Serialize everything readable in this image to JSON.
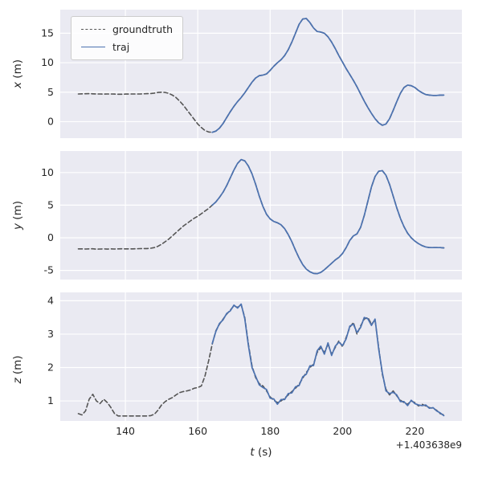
{
  "figure": {
    "xlabel": "t (s)",
    "xlabel_var": "t",
    "xlabel_unit": " (s)",
    "offset_text": "+1.403638e9"
  },
  "colors": {
    "background": "#ffffff",
    "axes_background": "#eaeaf2",
    "grid": "#ffffff",
    "text": "#262626"
  },
  "legend": {
    "position": "upper left",
    "entries": [
      {
        "label": "groundtruth",
        "series": "groundtruth"
      },
      {
        "label": "traj",
        "series": "traj"
      }
    ]
  },
  "series_styles": {
    "groundtruth": {
      "color": "#555555",
      "dash": "5 3.2",
      "width": 1.6
    },
    "traj": {
      "color": "#4c72b0",
      "dash": "",
      "width": 1.7
    }
  },
  "chart_data": [
    {
      "type": "line",
      "title": "",
      "xlabel": "",
      "ylabel": "x (m)",
      "ylabel_var": "x",
      "ylabel_unit": " (m)",
      "xlim": [
        122,
        233
      ],
      "ylim": [
        -2.8,
        19
      ],
      "xticks": [
        140,
        160,
        180,
        200,
        220
      ],
      "yticks": [
        0,
        5,
        10,
        15
      ],
      "x_offset": "+1.403638e9",
      "grid": true,
      "series": [
        {
          "name": "groundtruth",
          "t_start": 127,
          "t_step": 1,
          "values": [
            4.7,
            4.72,
            4.73,
            4.75,
            4.72,
            4.7,
            4.7,
            4.68,
            4.7,
            4.7,
            4.68,
            4.65,
            4.65,
            4.68,
            4.7,
            4.7,
            4.7,
            4.7,
            4.72,
            4.75,
            4.78,
            4.85,
            4.95,
            5.0,
            4.95,
            4.8,
            4.5,
            4.1,
            3.5,
            2.8,
            2.0,
            1.2,
            0.4,
            -0.4,
            -1.0,
            -1.5,
            -1.75,
            -1.8,
            -1.6,
            -1.1,
            -0.3,
            0.7,
            1.7,
            2.6,
            3.4,
            4.1,
            4.9,
            5.8,
            6.7,
            7.4,
            7.8,
            7.9,
            8.1,
            8.7,
            9.4,
            10.0,
            10.5,
            11.2,
            12.2,
            13.5,
            15.0,
            16.5,
            17.4,
            17.5,
            16.8,
            15.9,
            15.3,
            15.2,
            15.0,
            14.4,
            13.5,
            12.4,
            11.2,
            10.1,
            9.0,
            8.0,
            7.0,
            5.9,
            4.7,
            3.5,
            2.4,
            1.4,
            0.5,
            -0.2,
            -0.6,
            -0.4,
            0.5,
            1.9,
            3.4,
            4.8,
            5.8,
            6.2,
            6.1,
            5.8,
            5.3,
            4.9,
            4.6,
            4.5,
            4.45,
            4.45,
            4.5,
            4.5
          ]
        },
        {
          "name": "traj",
          "t_start": 164,
          "t_step": 1,
          "values": [
            -1.8,
            -1.6,
            -1.1,
            -0.3,
            0.7,
            1.7,
            2.6,
            3.4,
            4.1,
            4.9,
            5.8,
            6.7,
            7.4,
            7.8,
            7.9,
            8.1,
            8.7,
            9.4,
            10.0,
            10.5,
            11.2,
            12.2,
            13.5,
            15.0,
            16.5,
            17.4,
            17.5,
            16.8,
            15.9,
            15.3,
            15.2,
            15.0,
            14.4,
            13.5,
            12.4,
            11.2,
            10.1,
            9.0,
            8.0,
            7.0,
            5.9,
            4.7,
            3.5,
            2.4,
            1.4,
            0.5,
            -0.2,
            -0.6,
            -0.4,
            0.5,
            1.9,
            3.4,
            4.8,
            5.8,
            6.2,
            6.1,
            5.8,
            5.3,
            4.9,
            4.6,
            4.5,
            4.45,
            4.45,
            4.5,
            4.5
          ]
        }
      ]
    },
    {
      "type": "line",
      "title": "",
      "xlabel": "",
      "ylabel": "y (m)",
      "ylabel_var": "y",
      "ylabel_unit": " (m)",
      "xlim": [
        122,
        233
      ],
      "ylim": [
        -6.4,
        13.3
      ],
      "xticks": [
        140,
        160,
        180,
        200,
        220
      ],
      "yticks": [
        -5,
        0,
        5,
        10
      ],
      "x_offset": "+1.403638e9",
      "grid": true,
      "series": [
        {
          "name": "groundtruth",
          "t_start": 127,
          "t_step": 1,
          "values": [
            -1.7,
            -1.7,
            -1.72,
            -1.7,
            -1.68,
            -1.75,
            -1.72,
            -1.7,
            -1.73,
            -1.7,
            -1.72,
            -1.7,
            -1.68,
            -1.7,
            -1.7,
            -1.7,
            -1.68,
            -1.66,
            -1.65,
            -1.65,
            -1.6,
            -1.5,
            -1.3,
            -1.0,
            -0.6,
            -0.2,
            0.3,
            0.8,
            1.3,
            1.8,
            2.2,
            2.6,
            3.0,
            3.3,
            3.7,
            4.1,
            4.5,
            5.0,
            5.5,
            6.2,
            7.0,
            8.0,
            9.2,
            10.4,
            11.4,
            12.0,
            11.8,
            11.0,
            9.8,
            8.2,
            6.4,
            4.8,
            3.6,
            2.9,
            2.5,
            2.3,
            2.0,
            1.4,
            0.5,
            -0.6,
            -1.9,
            -3.1,
            -4.1,
            -4.8,
            -5.2,
            -5.45,
            -5.5,
            -5.3,
            -4.9,
            -4.4,
            -3.9,
            -3.4,
            -3.0,
            -2.4,
            -1.5,
            -0.4,
            0.3,
            0.6,
            1.6,
            3.4,
            5.6,
            7.8,
            9.4,
            10.2,
            10.3,
            9.6,
            8.2,
            6.4,
            4.6,
            3.0,
            1.7,
            0.7,
            0.0,
            -0.5,
            -0.9,
            -1.2,
            -1.4,
            -1.5,
            -1.5,
            -1.5,
            -1.5,
            -1.55
          ]
        },
        {
          "name": "traj",
          "t_start": 164,
          "t_step": 1,
          "values": [
            5.0,
            5.5,
            6.2,
            7.0,
            8.0,
            9.2,
            10.4,
            11.4,
            12.0,
            11.8,
            11.0,
            9.8,
            8.2,
            6.4,
            4.8,
            3.6,
            2.9,
            2.5,
            2.3,
            2.0,
            1.4,
            0.5,
            -0.6,
            -1.9,
            -3.1,
            -4.1,
            -4.8,
            -5.2,
            -5.45,
            -5.5,
            -5.3,
            -4.9,
            -4.4,
            -3.9,
            -3.4,
            -3.0,
            -2.4,
            -1.5,
            -0.4,
            0.3,
            0.6,
            1.6,
            3.4,
            5.6,
            7.8,
            9.4,
            10.2,
            10.3,
            9.6,
            8.2,
            6.4,
            4.6,
            3.0,
            1.7,
            0.7,
            0.0,
            -0.5,
            -0.9,
            -1.2,
            -1.4,
            -1.5,
            -1.5,
            -1.5,
            -1.5,
            -1.55
          ]
        }
      ]
    },
    {
      "type": "line",
      "title": "",
      "xlabel": "t (s)",
      "ylabel": "z (m)",
      "ylabel_var": "z",
      "ylabel_unit": " (m)",
      "xlim": [
        122,
        233
      ],
      "ylim": [
        0.4,
        4.25
      ],
      "xticks": [
        140,
        160,
        180,
        200,
        220
      ],
      "yticks": [
        1,
        2,
        3,
        4
      ],
      "x_offset": "+1.403638e9",
      "grid": true,
      "series": [
        {
          "name": "groundtruth",
          "t_start": 127,
          "t_step": 1,
          "values": [
            0.62,
            0.58,
            0.7,
            1.05,
            1.2,
            1.0,
            0.92,
            1.05,
            0.95,
            0.8,
            0.62,
            0.55,
            0.55,
            0.55,
            0.55,
            0.55,
            0.55,
            0.55,
            0.55,
            0.55,
            0.56,
            0.6,
            0.72,
            0.88,
            0.98,
            1.05,
            1.1,
            1.18,
            1.25,
            1.28,
            1.3,
            1.33,
            1.38,
            1.4,
            1.45,
            1.75,
            2.2,
            2.7,
            3.1,
            3.3,
            3.45,
            3.6,
            3.72,
            3.85,
            3.8,
            3.88,
            3.5,
            2.7,
            2.05,
            1.7,
            1.52,
            1.45,
            1.3,
            1.12,
            1.02,
            0.95,
            1.0,
            1.08,
            1.18,
            1.28,
            1.38,
            1.5,
            1.68,
            1.85,
            2.0,
            2.1,
            2.45,
            2.6,
            2.45,
            2.7,
            2.4,
            2.6,
            2.8,
            2.62,
            2.9,
            3.2,
            3.35,
            3.0,
            3.25,
            3.45,
            3.5,
            3.3,
            3.42,
            2.6,
            1.8,
            1.35,
            1.18,
            1.3,
            1.15,
            1.02,
            0.95,
            0.9,
            1.0,
            0.95,
            0.85,
            0.9,
            0.85,
            0.8,
            0.78,
            0.72,
            0.62,
            0.58
          ]
        },
        {
          "name": "traj",
          "t_start": 164,
          "t_step": 1,
          "values": [
            2.72,
            3.08,
            3.32,
            3.43,
            3.62,
            3.7,
            3.87,
            3.78,
            3.9,
            3.46,
            2.66,
            2.0,
            1.74,
            1.48,
            1.4,
            1.34,
            1.08,
            1.06,
            0.9,
            1.04,
            1.04,
            1.22,
            1.24,
            1.42,
            1.46,
            1.72,
            1.8,
            2.05,
            2.06,
            2.5,
            2.64,
            2.4,
            2.74,
            2.36,
            2.64,
            2.76,
            2.66,
            2.86,
            3.24,
            3.3,
            3.05,
            3.2,
            3.5,
            3.46,
            3.26,
            3.45,
            2.55,
            1.85,
            1.3,
            1.22,
            1.26,
            1.18,
            0.98,
            0.98,
            0.86,
            1.02,
            0.92,
            0.88,
            0.86,
            0.88,
            0.78,
            0.8,
            0.7,
            0.64,
            0.56
          ]
        }
      ]
    }
  ]
}
